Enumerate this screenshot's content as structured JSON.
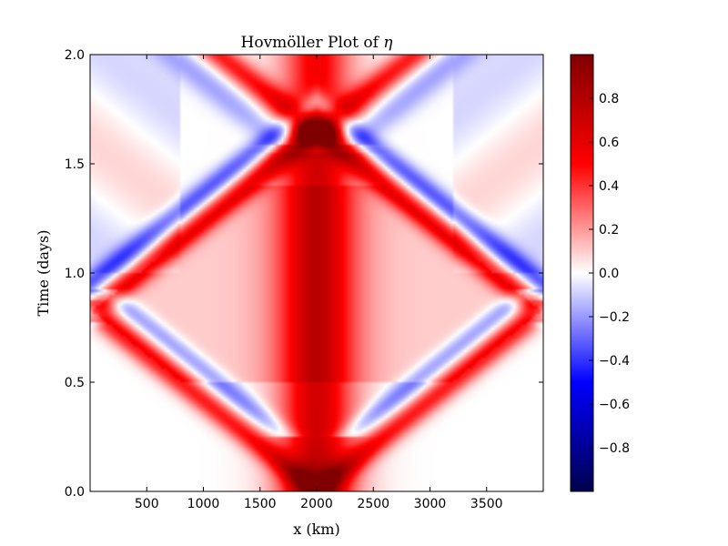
{
  "chart_data": {
    "type": "heatmap",
    "title": "Hovmöller Plot of η",
    "title_main": "Hovmöller Plot of ",
    "title_symbol": "η",
    "xlabel": "x (km)",
    "ylabel": "Time (days)",
    "xlim": [
      0,
      4000
    ],
    "ylim": [
      0.0,
      2.0
    ],
    "x_ticks": [
      500,
      1000,
      1500,
      2000,
      2500,
      3000,
      3500
    ],
    "x_tick_labels": [
      "500",
      "1000",
      "1500",
      "2000",
      "2500",
      "3000",
      "3500"
    ],
    "y_ticks": [
      0.0,
      0.5,
      1.0,
      1.5,
      2.0
    ],
    "y_tick_labels": [
      "0.0",
      "0.5",
      "1.0",
      "1.5",
      "2.0"
    ],
    "colormap": "seismic",
    "colormap_stops": [
      "#00004c",
      "#0000ff",
      "#ffffff",
      "#ff0000",
      "#800000"
    ],
    "colorbar_range": [
      -1.0,
      1.0
    ],
    "colorbar_ticks": [
      -0.8,
      -0.6,
      -0.4,
      -0.2,
      0.0,
      0.2,
      0.4,
      0.6,
      0.8
    ],
    "colorbar_tick_labels": [
      "−0.8",
      "−0.6",
      "−0.4",
      "−0.2",
      "0.0",
      "0.2",
      "0.4",
      "0.6",
      "0.8"
    ],
    "field_features": {
      "source_x": 2000,
      "wave_speed_km_per_day": 2400,
      "boundary_reflection_time": 0.82,
      "central_peak": 0.99,
      "crossing_time": 1.64,
      "crossing_peak": 0.85
    }
  }
}
